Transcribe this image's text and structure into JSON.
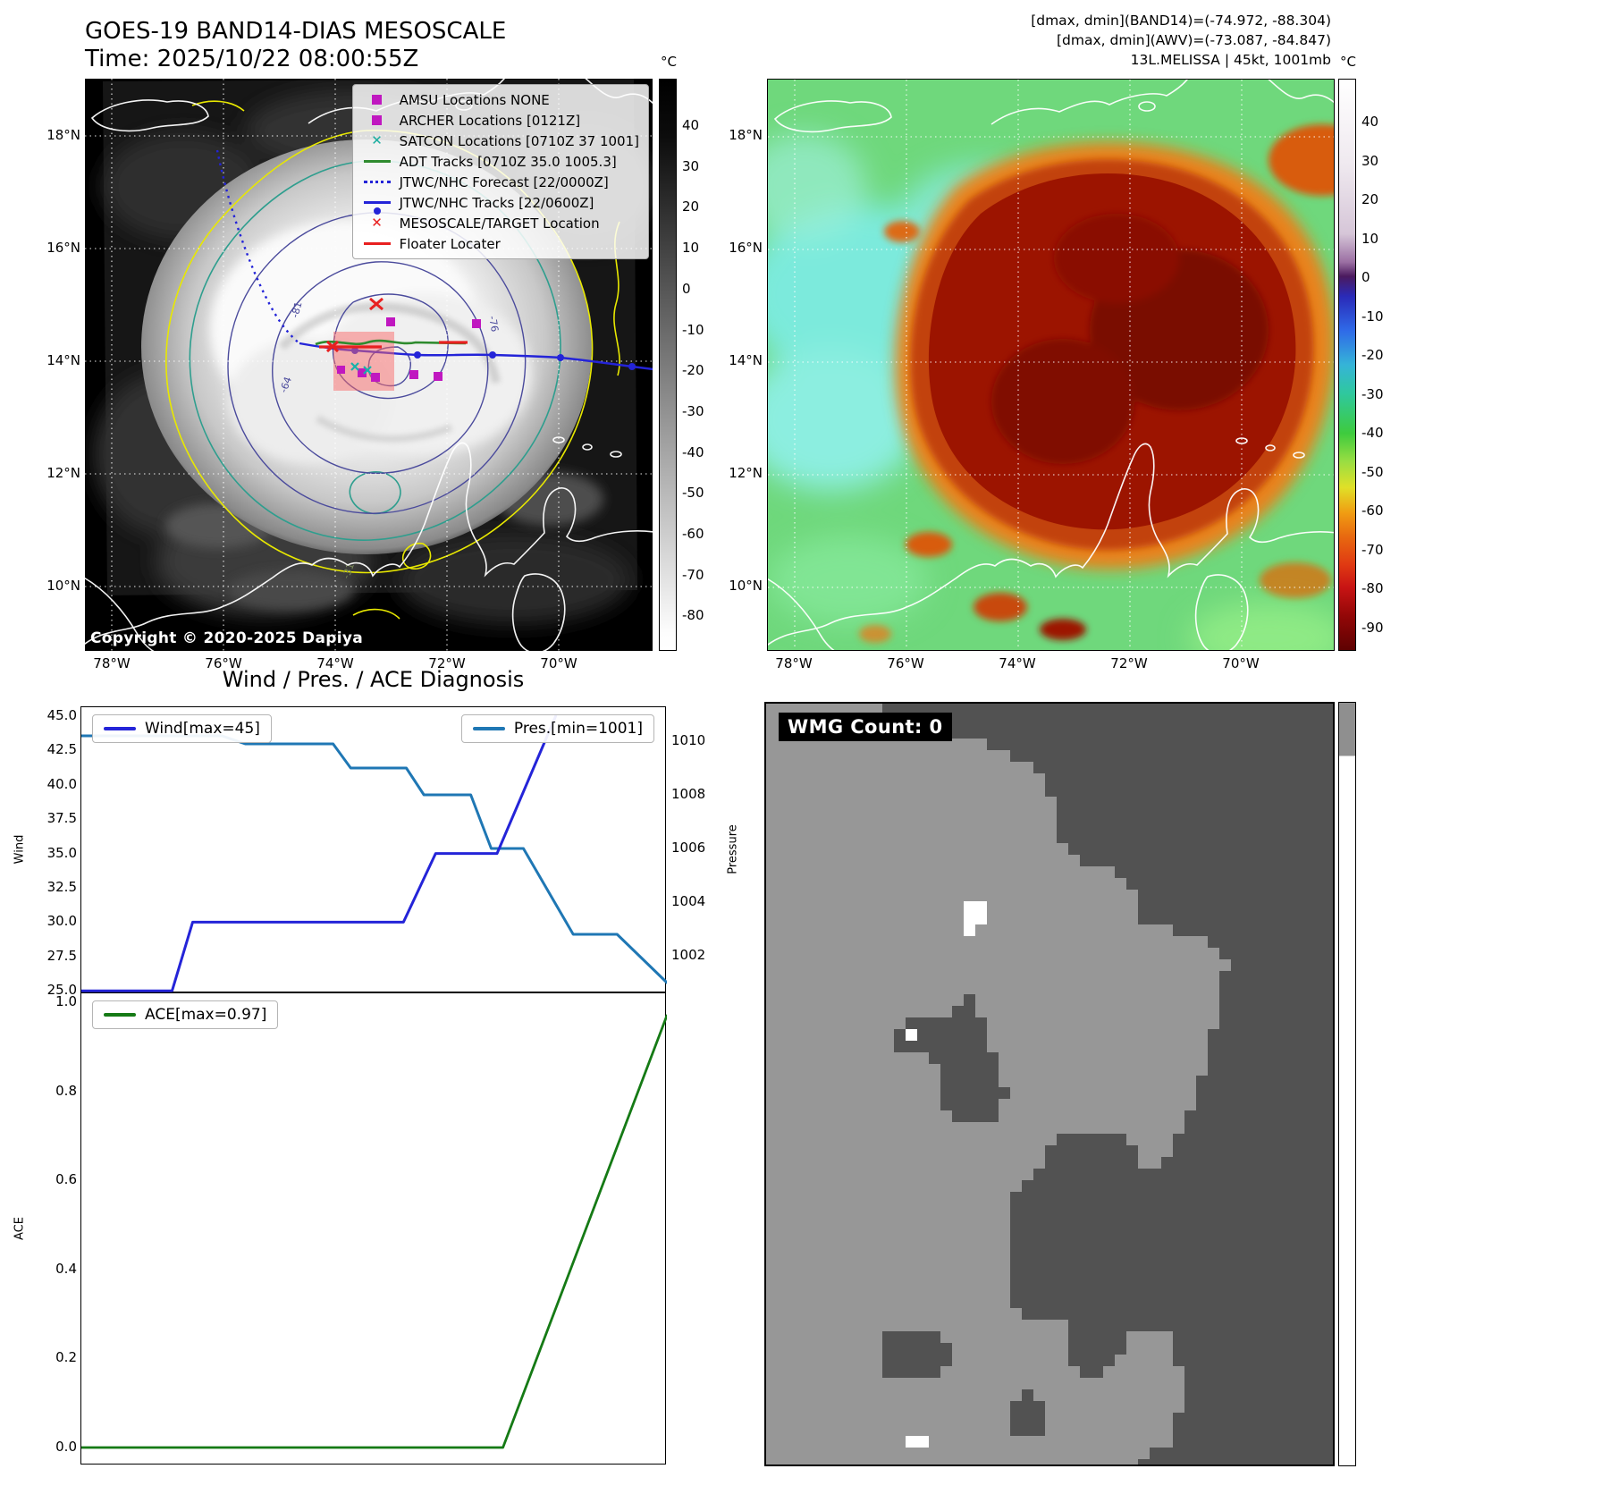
{
  "band14": {
    "title": "GOES-19 BAND14-DIAS MESOSCALE",
    "time_line": "Time: 2025/10/22 08:00:55Z",
    "copyright": "Copyright © 2020-2025 Dapiya",
    "colorbar_unit": "°C",
    "colorbar_ticks": [
      "40",
      "30",
      "20",
      "10",
      "0",
      "-10",
      "-20",
      "-30",
      "-40",
      "-50",
      "-60",
      "-70",
      "-80"
    ],
    "lat_ticks": [
      "18°N",
      "16°N",
      "14°N",
      "12°N",
      "10°N"
    ],
    "lon_ticks": [
      "78°W",
      "76°W",
      "74°W",
      "72°W",
      "70°W"
    ],
    "legend": [
      {
        "label": "AMSU Locations NONE",
        "type": "square",
        "color": "#c018c0"
      },
      {
        "label": "ARCHER Locations [0121Z]",
        "type": "square",
        "color": "#c018c0"
      },
      {
        "label": "SATCON Locations [0710Z 37 1001]",
        "type": "x",
        "color": "#1aada0"
      },
      {
        "label": "ADT Tracks [0710Z 35.0 1005.3]",
        "type": "line",
        "color": "#2e8b2e"
      },
      {
        "label": "JTWC/NHC Forecast [22/0000Z]",
        "type": "dotted",
        "color": "#2424d8"
      },
      {
        "label": "JTWC/NHC Tracks [22/0600Z]",
        "type": "linedot",
        "color": "#2424d8"
      },
      {
        "label": "MESOSCALE/TARGET Location",
        "type": "x",
        "color": "#e82020"
      },
      {
        "label": "Floater Locater",
        "type": "line",
        "color": "#e82020"
      }
    ]
  },
  "awv": {
    "header_lines": [
      "[dmax, dmin](BAND14)=(-74.972, -88.304)",
      "[dmax, dmin](AWV)=(-73.087, -84.847)",
      "13L.MELISSA | 45kt, 1001mb"
    ],
    "colorbar_unit": "°C",
    "colorbar_ticks": [
      "40",
      "30",
      "20",
      "10",
      "0",
      "-10",
      "-20",
      "-30",
      "-40",
      "-50",
      "-60",
      "-70",
      "-80",
      "-90"
    ],
    "lat_ticks": [
      "18°N",
      "16°N",
      "14°N",
      "12°N",
      "10°N"
    ],
    "lon_ticks": [
      "78°W",
      "76°W",
      "74°W",
      "72°W",
      "70°W"
    ]
  },
  "diagnosis": {
    "title": "Wind / Pres. / ACE Diagnosis",
    "wind_axis_label": "Wind",
    "pressure_axis_label": "Pressure",
    "ace_axis_label": "ACE",
    "wind_legend": "Wind[max=45]",
    "pres_legend": "Pres.[min=1001]",
    "ace_legend": "ACE[max=0.97]",
    "wind_ticks": [
      "45.0",
      "42.5",
      "40.0",
      "37.5",
      "35.0",
      "32.5",
      "30.0",
      "27.5",
      "25.0"
    ],
    "pressure_ticks": [
      "1010",
      "1008",
      "1006",
      "1004",
      "1002"
    ],
    "ace_ticks": [
      "1.0",
      "0.8",
      "0.6",
      "0.4",
      "0.2",
      "0.0"
    ]
  },
  "wmg": {
    "title": "WMG Count: 0"
  },
  "chart_data": [
    {
      "type": "line",
      "title": "Wind / Pres. / ACE Diagnosis",
      "xlabel": "",
      "ylabel_left": "Wind",
      "ylabel_right": "Pressure",
      "ylim_wind": [
        24.7,
        45.4
      ],
      "ylim_pressure": [
        1000.6,
        1011.3
      ],
      "yticks_wind": [
        45.0,
        42.5,
        40.0,
        37.5,
        35.0,
        32.5,
        30.0,
        27.5,
        25.0
      ],
      "yticks_pressure": [
        1010,
        1008,
        1006,
        1004,
        1002
      ],
      "grid": false,
      "series": [
        {
          "name": "Wind[max=45]",
          "axis": "wind",
          "color": "#2424d8",
          "points": [
            [
              0,
              25
            ],
            [
              0.155,
              25
            ],
            [
              0.19,
              30
            ],
            [
              0.55,
              30
            ],
            [
              0.605,
              35
            ],
            [
              0.71,
              35
            ],
            [
              0.81,
              45
            ]
          ]
        },
        {
          "name": "Pres.[min=1001]",
          "axis": "pressure",
          "color": "#1f77b4",
          "points": [
            [
              0,
              1010.2
            ],
            [
              0.24,
              1010.2
            ],
            [
              0.28,
              1009.9
            ],
            [
              0.43,
              1009.9
            ],
            [
              0.46,
              1009
            ],
            [
              0.555,
              1009
            ],
            [
              0.585,
              1008
            ],
            [
              0.665,
              1008
            ],
            [
              0.7,
              1006
            ],
            [
              0.755,
              1006
            ],
            [
              0.84,
              1002.8
            ],
            [
              0.915,
              1002.8
            ],
            [
              1,
              1001
            ]
          ]
        }
      ]
    },
    {
      "type": "line",
      "ylabel_left": "ACE",
      "ylim": [
        -0.02,
        1.04
      ],
      "yticks": [
        1.0,
        0.8,
        0.6,
        0.4,
        0.2,
        0.0
      ],
      "grid": false,
      "series": [
        {
          "name": "ACE[max=0.97]",
          "color": "#157a15",
          "points": [
            [
              0,
              0
            ],
            [
              0.72,
              0
            ],
            [
              1,
              0.97
            ]
          ]
        }
      ]
    }
  ]
}
